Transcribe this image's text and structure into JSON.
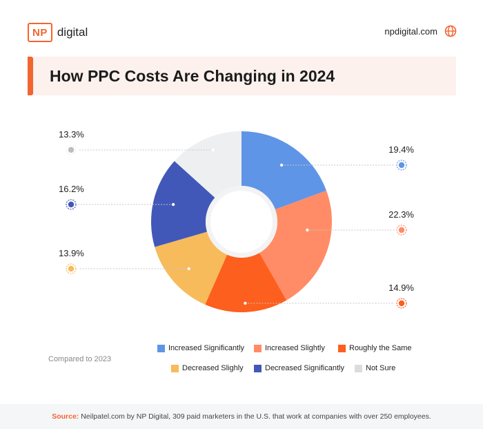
{
  "brand": {
    "logo_mark": "NP",
    "logo_word": "digital",
    "site": "npdigital.com",
    "site_icon": "globe-icon",
    "accent": "#f26530"
  },
  "title": "How PPC Costs Are Changing in 2024",
  "compared_note": "Compared to 2023",
  "source": {
    "label": "Source:",
    "text": "Neilpatel.com by NP Digital, 309 paid marketers in the U.S. that work at companies with over 250 employees."
  },
  "chart_data": {
    "type": "pie",
    "donut": true,
    "legend_position": "bottom",
    "slices": [
      {
        "label": "Increased Significantly",
        "value": 19.4,
        "display": "19.4%",
        "color": "#5f95e6"
      },
      {
        "label": "Increased Slightly",
        "value": 22.3,
        "display": "22.3%",
        "color": "#ff8c66"
      },
      {
        "label": "Roughly the Same",
        "value": 14.9,
        "display": "14.9%",
        "color": "#fd5f1e"
      },
      {
        "label": "Decreased Slighly",
        "value": 13.9,
        "display": "13.9%",
        "color": "#f7bb5b"
      },
      {
        "label": "Decreased Significantly",
        "value": 16.2,
        "display": "16.2%",
        "color": "#4258b8"
      },
      {
        "label": "Not Sure",
        "value": 13.3,
        "display": "13.3%",
        "color": "#eeeff1"
      }
    ]
  }
}
